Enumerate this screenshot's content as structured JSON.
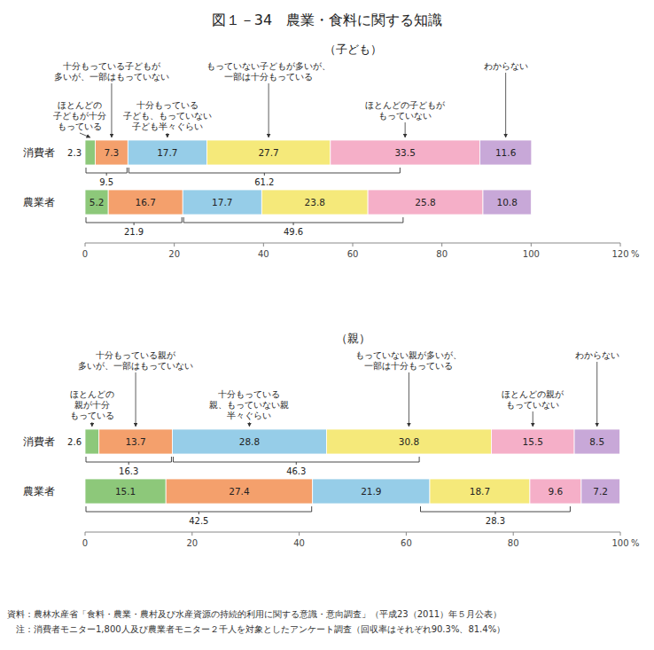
{
  "title": "図１－34　農業・食料に関する知識",
  "notes": [
    "資料：農林水産省「食料・農業・農村及び水産資源の持続的利用に関する意識・意向調査」（平成23（2011）年５月公表）",
    "　注：消費者モニター1,800人及び農業者モニター２千人を対象としたアンケート調査（回収率はそれぞれ90.3%、81.4%）"
  ],
  "chart_data": [
    {
      "type": "bar",
      "orientation": "horizontal",
      "stacked": true,
      "data_labels": true,
      "title": "（子ども）",
      "categories": [
        "消費者",
        "農業者"
      ],
      "series": [
        {
          "name": "ほとんどの\n子どもが十分\nもっている",
          "color": "#8dc87a",
          "values": [
            2.3,
            5.2
          ]
        },
        {
          "name": "十分もっている子どもが\n多いが、一部はもっていない",
          "color": "#f4a06c",
          "values": [
            7.3,
            16.7
          ]
        },
        {
          "name": "十分もっている\n子ども、もっていない\n子ども半々ぐらい",
          "color": "#96cde8",
          "values": [
            17.7,
            17.7
          ]
        },
        {
          "name": "もっていない子どもが多いが、\n一部は十分もっている",
          "color": "#f5e97a",
          "values": [
            27.7,
            23.8
          ]
        },
        {
          "name": "ほとんどの子どもが\nもっていない",
          "color": "#f5afc8",
          "values": [
            33.5,
            25.8
          ]
        },
        {
          "name": "わからない",
          "color": "#c8a8d8",
          "values": [
            11.6,
            10.8
          ]
        }
      ],
      "xlim": [
        0,
        120
      ],
      "xticks": [
        0,
        20,
        40,
        60,
        80,
        100,
        120
      ],
      "x_label": "%",
      "braces": [
        [
          {
            "span": [
              0,
              9.6
            ],
            "value": 9.5
          },
          {
            "span": [
              9.6,
              70.8
            ],
            "value": 61.2
          }
        ],
        [
          {
            "span": [
              0,
              21.9
            ],
            "value": 21.9
          },
          {
            "span": [
              21.9,
              71.5
            ],
            "value": 49.6
          }
        ]
      ]
    },
    {
      "type": "bar",
      "orientation": "horizontal",
      "stacked": true,
      "data_labels": true,
      "title": "（親）",
      "categories": [
        "消費者",
        "農業者"
      ],
      "series": [
        {
          "name": "ほとんどの\n親が十分\nもっている",
          "color": "#8dc87a",
          "values": [
            2.6,
            15.1
          ]
        },
        {
          "name": "十分もっている親が\n多いが、一部はもっていない",
          "color": "#f4a06c",
          "values": [
            13.7,
            27.4
          ]
        },
        {
          "name": "十分もっている\n親、もっていない親\n半々ぐらい",
          "color": "#96cde8",
          "values": [
            28.8,
            21.9
          ]
        },
        {
          "name": "もっていない親が多いが、\n一部は十分もっている",
          "color": "#f5e97a",
          "values": [
            30.8,
            18.7
          ]
        },
        {
          "name": "ほとんどの親が\nもっていない",
          "color": "#f5afc8",
          "values": [
            15.5,
            9.6
          ]
        },
        {
          "name": "わからない",
          "color": "#c8a8d8",
          "values": [
            8.5,
            7.2
          ]
        }
      ],
      "xlim": [
        0,
        100
      ],
      "xticks": [
        0,
        20,
        40,
        60,
        80,
        100
      ],
      "x_label": "%",
      "braces": [
        [
          {
            "span": [
              0,
              16.3
            ],
            "value": 16.3
          },
          {
            "span": [
              16.3,
              62.6
            ],
            "value": 46.3
          }
        ],
        [
          {
            "span": [
              0,
              42.5
            ],
            "value": 42.5
          },
          {
            "span": [
              62.5,
              90.8
            ],
            "value": 28.3
          }
        ]
      ]
    }
  ]
}
